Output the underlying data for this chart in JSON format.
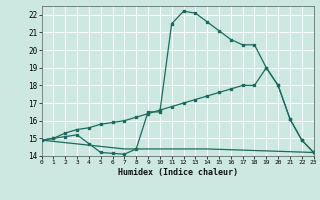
{
  "xlabel": "Humidex (Indice chaleur)",
  "background_color": "#cce8e0",
  "grid_color": "#ffffff",
  "line_color": "#1a6b5e",
  "x_min": 0,
  "x_max": 23,
  "y_min": 14,
  "y_max": 22.5,
  "curve1_x": [
    0,
    1,
    2,
    3,
    4,
    5,
    6,
    7,
    8,
    9,
    10,
    11,
    12,
    13,
    14,
    15,
    16,
    17,
    18,
    19,
    20,
    21,
    22,
    23
  ],
  "curve1_y": [
    14.9,
    15.0,
    15.1,
    15.2,
    14.7,
    14.2,
    14.15,
    14.1,
    14.4,
    16.5,
    16.5,
    21.5,
    22.2,
    22.1,
    21.6,
    21.1,
    20.6,
    20.3,
    20.3,
    19.0,
    18.0,
    16.1,
    14.9,
    14.2
  ],
  "curve2_x": [
    0,
    7,
    14,
    23
  ],
  "curve2_y": [
    14.9,
    14.4,
    14.4,
    14.2
  ],
  "curve3_x": [
    0,
    1,
    2,
    3,
    4,
    5,
    6,
    7,
    8,
    9,
    10,
    11,
    12,
    13,
    14,
    15,
    16,
    17,
    18,
    19,
    20,
    21,
    22,
    23
  ],
  "curve3_y": [
    14.9,
    15.0,
    15.3,
    15.5,
    15.6,
    15.8,
    15.9,
    16.0,
    16.2,
    16.4,
    16.6,
    16.8,
    17.0,
    17.2,
    17.4,
    17.6,
    17.8,
    18.0,
    18.0,
    19.0,
    18.0,
    16.1,
    14.9,
    14.2
  ],
  "x_ticks": [
    0,
    1,
    2,
    3,
    4,
    5,
    6,
    7,
    8,
    9,
    10,
    11,
    12,
    13,
    14,
    15,
    16,
    17,
    18,
    19,
    20,
    21,
    22,
    23
  ],
  "y_ticks": [
    14,
    15,
    16,
    17,
    18,
    19,
    20,
    21,
    22
  ]
}
